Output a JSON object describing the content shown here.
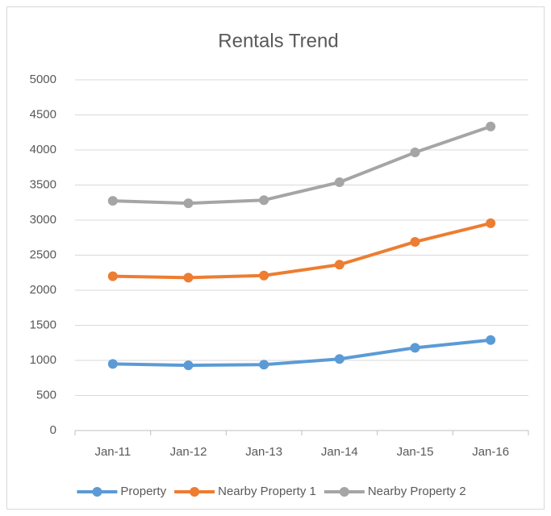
{
  "chart_data": {
    "type": "line",
    "title": "Rentals Trend",
    "categories": [
      "Jan-11",
      "Jan-12",
      "Jan-13",
      "Jan-14",
      "Jan-15",
      "Jan-16"
    ],
    "series": [
      {
        "name": "Property",
        "color": "#5b9bd5",
        "values": [
          950,
          930,
          940,
          1020,
          1180,
          1290
        ]
      },
      {
        "name": "Nearby Property 1",
        "color": "#ed7d31",
        "values": [
          2200,
          2180,
          2210,
          2365,
          2690,
          2955
        ]
      },
      {
        "name": "Nearby Property 2",
        "color": "#a5a5a5",
        "values": [
          3275,
          3240,
          3285,
          3540,
          3965,
          4335
        ]
      }
    ],
    "ylim": [
      0,
      5000
    ],
    "yticks": [
      0,
      500,
      1000,
      1500,
      2000,
      2500,
      3000,
      3500,
      4000,
      4500,
      5000
    ],
    "grid": true,
    "legend": "bottom"
  }
}
